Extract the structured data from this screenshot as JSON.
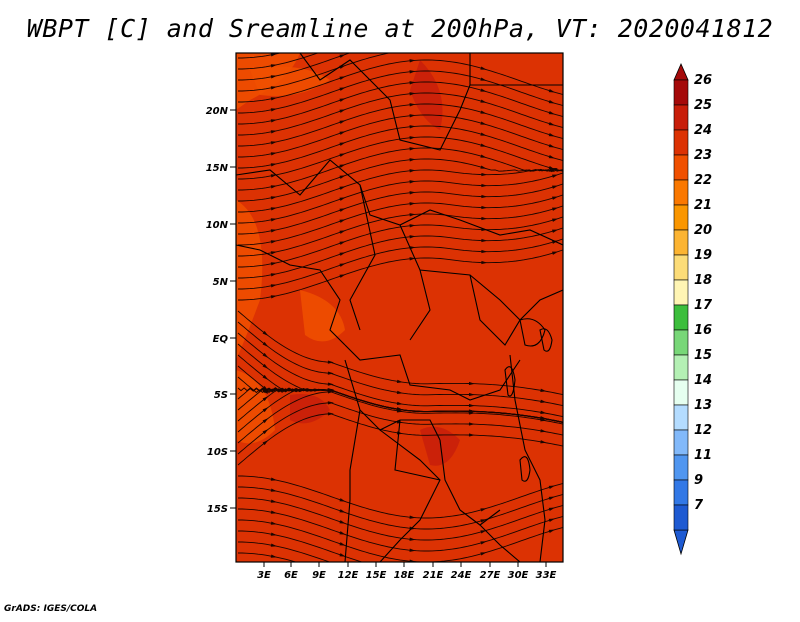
{
  "title": "WBPT [C] and Sreamline at 200hPa, VT: 2020041812",
  "footer": "GrADS: IGES/COLA",
  "y_ticks": [
    "20N",
    "15N",
    "10N",
    "5N",
    "EQ",
    "5S",
    "10S",
    "15S"
  ],
  "x_ticks": [
    "3E",
    "6E",
    "9E",
    "12E",
    "15E",
    "18E",
    "21E",
    "24E",
    "27E",
    "30E",
    "33E"
  ],
  "colorbar": {
    "labels": [
      "26",
      "25",
      "24",
      "23",
      "22",
      "21",
      "20",
      "19",
      "18",
      "17",
      "16",
      "15",
      "14",
      "13",
      "12",
      "11",
      "9",
      "7"
    ],
    "colors": [
      "#a50a0a",
      "#c81e0a",
      "#dc3203",
      "#f05000",
      "#fa7800",
      "#fa9600",
      "#fcb432",
      "#fcdc78",
      "#fff5b4",
      "#3cbe3c",
      "#78d778",
      "#b4f0b4",
      "#e6fff0",
      "#b4dcff",
      "#82b9fa",
      "#5096f0",
      "#3278e6",
      "#1e5ad2"
    ],
    "top_cap_color": "#a50a0a",
    "bottom_cap_color": "#1e5ad2"
  },
  "field_colors": {
    "dominant": "#dc3203",
    "warm_patch": "#c81e0a",
    "cool_patch": "#f05000"
  }
}
